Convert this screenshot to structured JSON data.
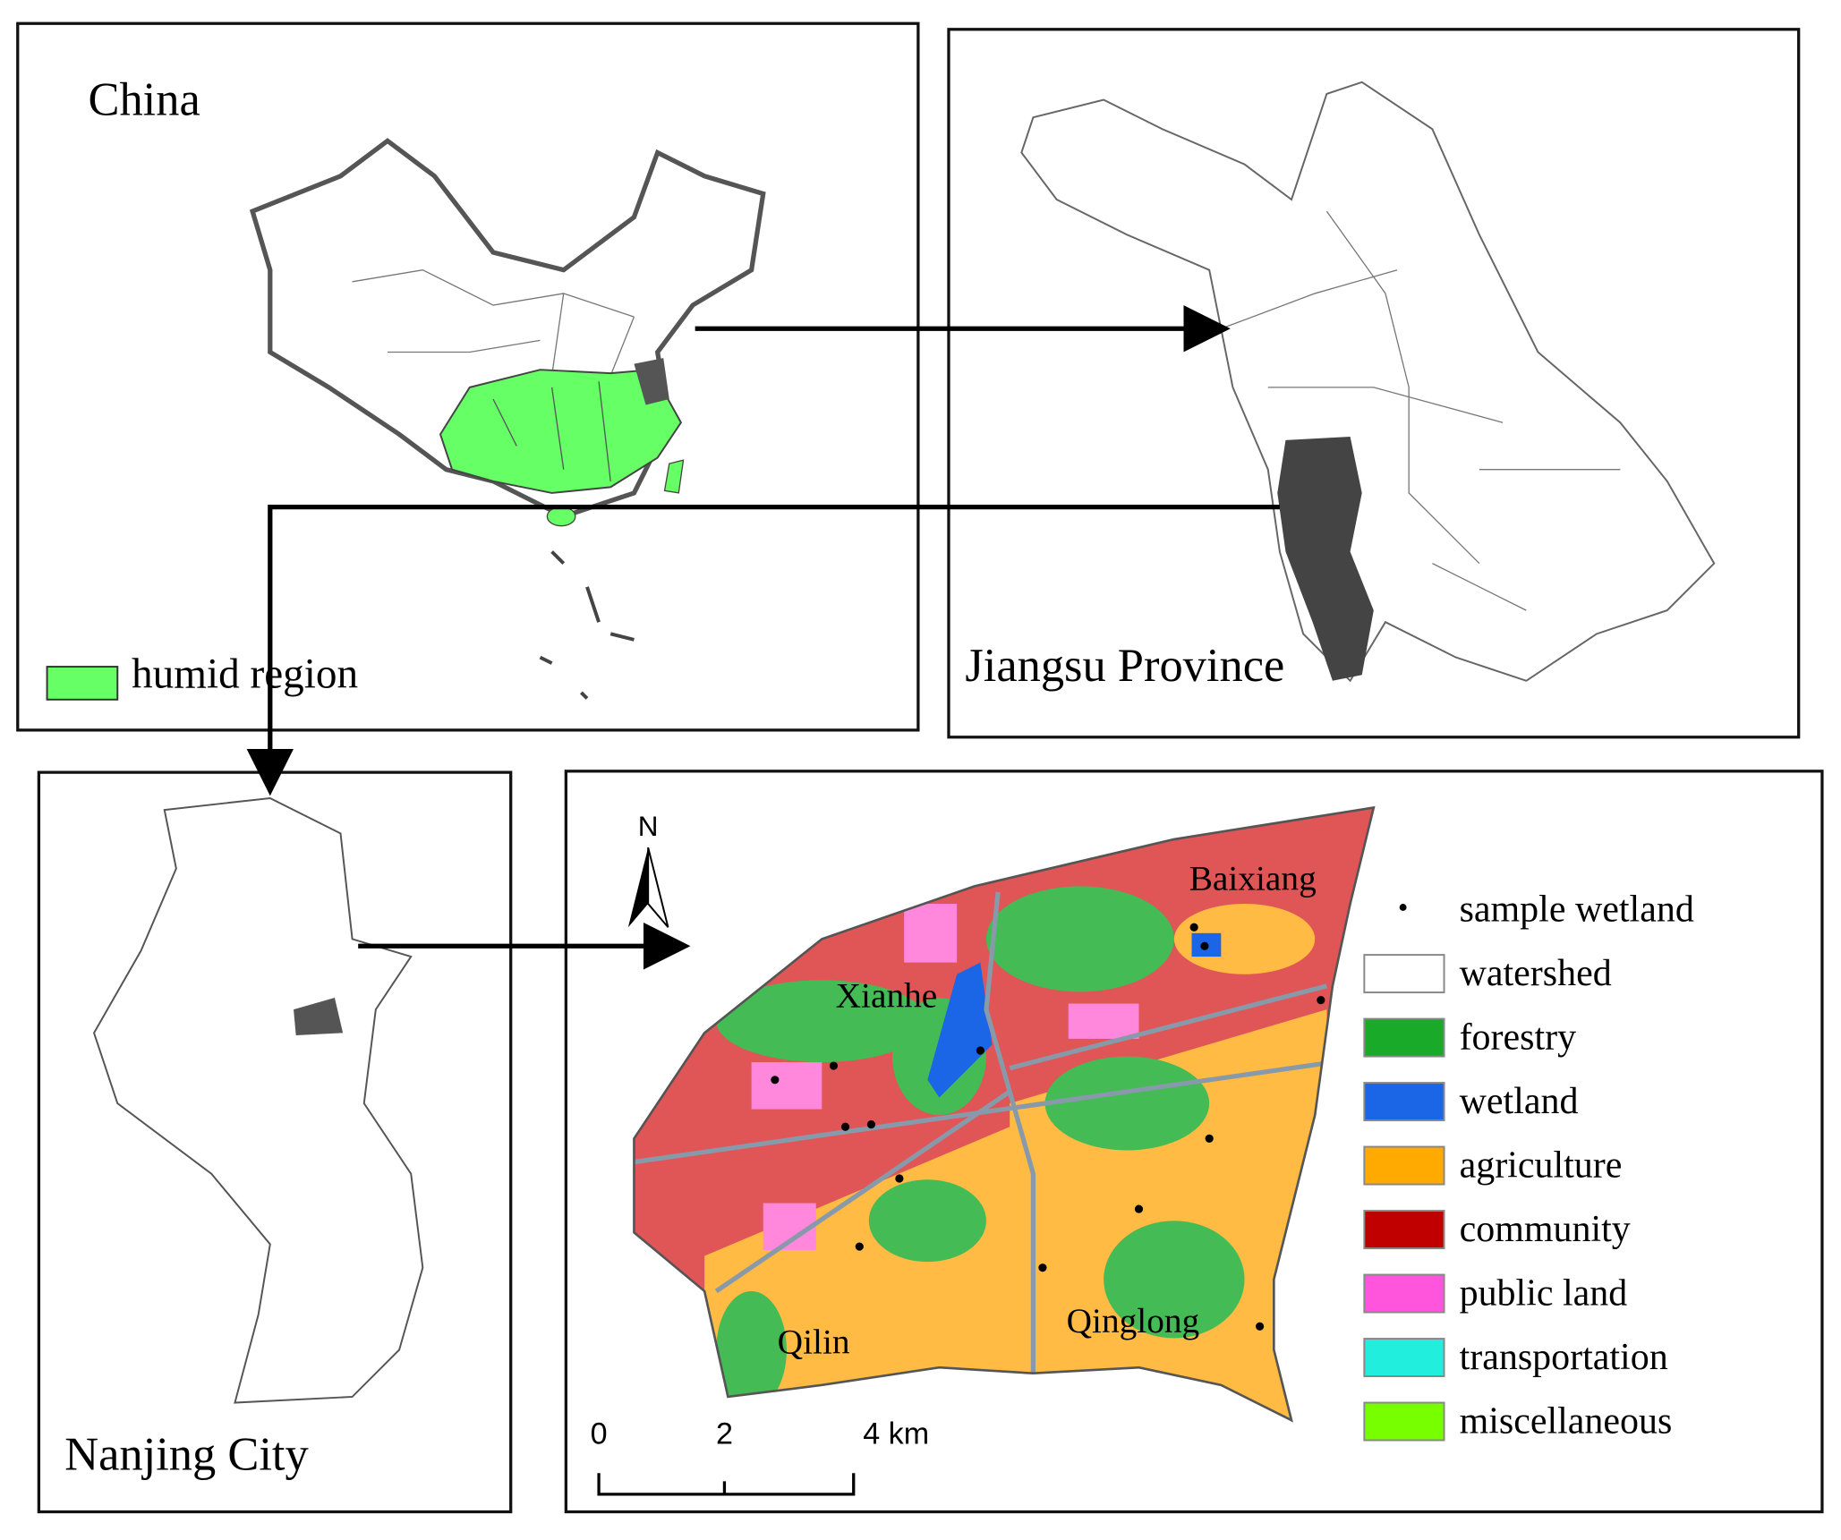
{
  "panels": {
    "china": {
      "title": "China",
      "legend": {
        "name": "humid region",
        "color": "#66ff66"
      }
    },
    "jiangsu": {
      "title": "Jiangsu Province"
    },
    "nanjing": {
      "title": "Nanjing City"
    },
    "study_area": {
      "north": "N",
      "places": [
        "Xianhe",
        "Baixiang",
        "Qilin",
        "Qinglong"
      ],
      "scale_labels": [
        "0",
        "2",
        "4 km"
      ],
      "legend": [
        {
          "name": "sample wetland",
          "symbol": "dot",
          "color": "#000000"
        },
        {
          "name": "watershed",
          "symbol": "swatch",
          "color": "#ffffff"
        },
        {
          "name": "forestry",
          "symbol": "swatch",
          "color": "#1aaa2a"
        },
        {
          "name": "wetland",
          "symbol": "swatch",
          "color": "#1a66e6"
        },
        {
          "name": "agriculture",
          "symbol": "swatch",
          "color": "#ffaa00"
        },
        {
          "name": "community",
          "symbol": "swatch",
          "color": "#c00000"
        },
        {
          "name": "public land",
          "symbol": "swatch",
          "color": "#ff55dd"
        },
        {
          "name": "transportation",
          "symbol": "swatch",
          "color": "#22eedd"
        },
        {
          "name": "miscellaneous",
          "symbol": "swatch",
          "color": "#77ff00"
        }
      ]
    }
  }
}
